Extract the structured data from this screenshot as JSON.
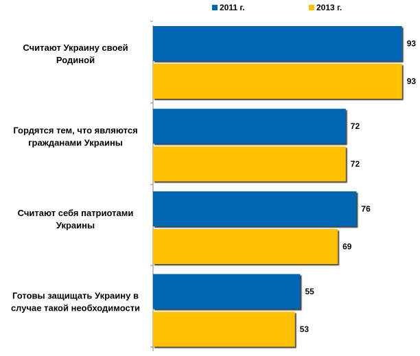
{
  "chart_data": {
    "type": "bar",
    "orientation": "horizontal",
    "categories": [
      [
        "Считают Украину своей",
        "Родиной"
      ],
      [
        "Гордятся тем, что являются",
        "гражданами Украины"
      ],
      [
        "Считают  себя патриотами",
        "Украины"
      ],
      [
        "Готовы защищать Украину в",
        "случае такой необходимости"
      ]
    ],
    "series": [
      {
        "name": "2011 г.",
        "color": "#0066B3",
        "values": [
          93,
          72,
          76,
          55
        ]
      },
      {
        "name": "2013 г.",
        "color": "#FFC000",
        "values": [
          93,
          72,
          69,
          53
        ]
      }
    ],
    "xlim": [
      0,
      100
    ],
    "grid": false,
    "legend_position": "top"
  }
}
